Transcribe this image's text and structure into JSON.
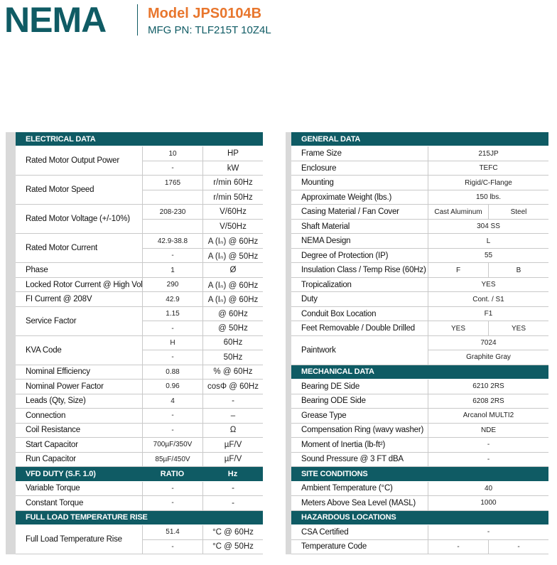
{
  "header": {
    "logo": "NEMA",
    "model": "Model JPS0104B",
    "mfg_pn": "MFG PN: TLF215T 10Z4L"
  },
  "left": {
    "rows": [
      {
        "header": [
          "ELECTRICAL DATA"
        ]
      },
      {
        "label": "Rated Motor Output Power",
        "lines": [
          [
            "10",
            "HP"
          ],
          [
            "-",
            "kW"
          ]
        ]
      },
      {
        "label": "Rated Motor Speed",
        "lines": [
          [
            "1765",
            "r/min 60Hz"
          ],
          [
            null,
            "r/min 50Hz"
          ]
        ]
      },
      {
        "label": "Rated Motor Voltage (+/-10%)",
        "lines": [
          [
            "208-230",
            "V/60Hz"
          ],
          [
            null,
            "V/50Hz"
          ]
        ]
      },
      {
        "label": "Rated Motor Current",
        "lines": [
          [
            "42.9-38.8",
            "A (Iₙ) @ 60Hz"
          ],
          [
            "-",
            "A (Iₙ) @ 50Hz"
          ]
        ]
      },
      {
        "label": "Phase",
        "lines": [
          [
            "1",
            "Ø"
          ]
        ]
      },
      {
        "label": "Locked Rotor Current @ High Voltage",
        "lines": [
          [
            "290",
            "A (Iₙ) @ 60Hz"
          ]
        ]
      },
      {
        "label": "FI Current @ 208V",
        "lines": [
          [
            "42.9",
            "A (Iₙ) @ 60Hz"
          ]
        ]
      },
      {
        "label": "Service Factor",
        "lines": [
          [
            "1.15",
            "@ 60Hz"
          ],
          [
            "-",
            "@ 50Hz"
          ]
        ]
      },
      {
        "label": "KVA Code",
        "lines": [
          [
            "H",
            "60Hz"
          ],
          [
            "-",
            "50Hz"
          ]
        ]
      },
      {
        "label": "Nominal Efficiency",
        "lines": [
          [
            "0.88",
            "% @ 60Hz"
          ]
        ]
      },
      {
        "label": "Nominal Power Factor",
        "lines": [
          [
            "0.96",
            "cosΦ @ 60Hz"
          ]
        ]
      },
      {
        "label": "Leads (Qty, Size)",
        "lines": [
          [
            "4",
            "-"
          ]
        ]
      },
      {
        "label": "Connection",
        "lines": [
          [
            "-",
            "–"
          ]
        ]
      },
      {
        "label": "Coil Resistance",
        "lines": [
          [
            "-",
            "Ω"
          ]
        ]
      },
      {
        "label": "Start Capacitor",
        "lines": [
          [
            "700µF/350V",
            "µF/V"
          ]
        ]
      },
      {
        "label": "Run Capacitor",
        "lines": [
          [
            "85µF/450V",
            "µF/V"
          ]
        ]
      },
      {
        "header": [
          "VFD DUTY (S.F. 1.0)",
          "RATIO",
          "Hz"
        ]
      },
      {
        "label": "Variable Torque",
        "lines": [
          [
            "-",
            "-"
          ]
        ]
      },
      {
        "label": "Constant Torque",
        "lines": [
          [
            "-",
            "-"
          ]
        ]
      },
      {
        "header": [
          "FULL LOAD TEMPERATURE RISE"
        ]
      },
      {
        "label": "Full Load Temperature Rise",
        "lines": [
          [
            "51.4",
            "°C @ 60Hz"
          ],
          [
            "-",
            "°C @ 50Hz"
          ]
        ]
      }
    ]
  },
  "right": {
    "rows": [
      {
        "header": [
          "GENERAL DATA"
        ]
      },
      {
        "label": "Frame Size",
        "lines": [
          [
            "215JP"
          ]
        ]
      },
      {
        "label": "Enclosure",
        "lines": [
          [
            "TEFC"
          ]
        ]
      },
      {
        "label": "Mounting",
        "lines": [
          [
            "Rigid/C-Flange"
          ]
        ]
      },
      {
        "label": "Approximate Weight (lbs.)",
        "lines": [
          [
            "150 lbs."
          ]
        ]
      },
      {
        "label": "Casing Material / Fan Cover",
        "lines": [
          [
            "Cast Aluminum",
            "Steel"
          ]
        ]
      },
      {
        "label": "Shaft Material",
        "lines": [
          [
            "304 SS"
          ]
        ]
      },
      {
        "label": "NEMA Design",
        "lines": [
          [
            "L"
          ]
        ]
      },
      {
        "label": "Degree of Protection (IP)",
        "lines": [
          [
            "55"
          ]
        ]
      },
      {
        "label": "Insulation Class / Temp Rise (60Hz)",
        "lines": [
          [
            "F",
            "B"
          ]
        ]
      },
      {
        "label": "Tropicalization",
        "lines": [
          [
            "YES"
          ]
        ]
      },
      {
        "label": "Duty",
        "lines": [
          [
            "Cont. / S1"
          ]
        ]
      },
      {
        "label": "Conduit Box Location",
        "lines": [
          [
            "F1"
          ]
        ]
      },
      {
        "label": "Feet Removable / Double Drilled",
        "lines": [
          [
            "YES",
            "YES"
          ]
        ]
      },
      {
        "label": "Paintwork",
        "lines": [
          [
            "7024"
          ],
          [
            "Graphite Gray"
          ]
        ]
      },
      {
        "header": [
          "MECHANICAL DATA"
        ]
      },
      {
        "label": "Bearing DE Side",
        "lines": [
          [
            "6210 2RS"
          ]
        ]
      },
      {
        "label": "Bearing ODE Side",
        "lines": [
          [
            "6208 2RS"
          ]
        ]
      },
      {
        "label": "Grease Type",
        "lines": [
          [
            "Arcanol MULTI2"
          ]
        ]
      },
      {
        "label": "Compensation Ring (wavy washer)",
        "lines": [
          [
            "NDE"
          ]
        ]
      },
      {
        "label": "Moment of Inertia (lb-ft²)",
        "lines": [
          [
            "-"
          ]
        ]
      },
      {
        "label": "Sound Pressure @ 3 FT dBA",
        "lines": [
          [
            "-"
          ]
        ]
      },
      {
        "header": [
          "SITE CONDITIONS"
        ]
      },
      {
        "label": "Ambient Temperature (°C)",
        "lines": [
          [
            "40"
          ]
        ]
      },
      {
        "label": "Meters Above Sea Level (MASL)",
        "lines": [
          [
            "1000"
          ]
        ]
      },
      {
        "header": [
          "HAZARDOUS LOCATIONS"
        ]
      },
      {
        "label": "CSA Certified",
        "lines": [
          [
            "-"
          ]
        ]
      },
      {
        "label": "Temperature Code",
        "lines": [
          [
            "-",
            "-"
          ]
        ]
      }
    ]
  }
}
